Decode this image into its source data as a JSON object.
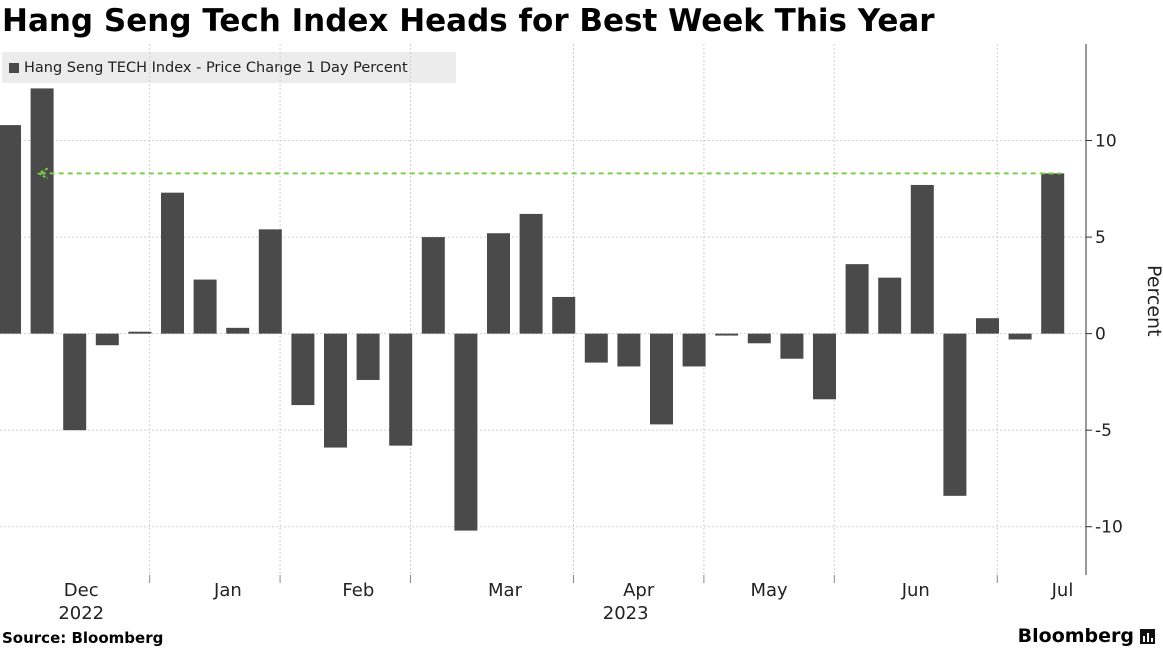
{
  "header": {
    "title": "Hang Seng Tech Index Heads for Best Week This Year"
  },
  "footer": {
    "source": "Source: Bloomberg",
    "brand": "Bloomberg",
    "brand_icon": "bar-chart-icon"
  },
  "colors": {
    "bars": "#4a4a4a",
    "highlight": "#7ad04a",
    "grid": "#d0d0d0",
    "legend_bg": "#ececec"
  },
  "chart_data": {
    "type": "bar",
    "legend": [
      "Hang Seng TECH Index - Price Change 1 Day Percent"
    ],
    "ylabel": "Percent",
    "ylim": [
      -12.5,
      15
    ],
    "yticks": [
      10,
      5,
      0,
      -5,
      -10
    ],
    "yaxis_position": "right",
    "grid": true,
    "legend_position": "top-left",
    "series": [
      {
        "name": "Hang Seng TECH Index - Price Change 1 Day Percent",
        "values": [
          10.8,
          12.7,
          -5.0,
          -0.6,
          0.1,
          7.3,
          2.8,
          0.3,
          5.4,
          -3.7,
          -5.9,
          -2.4,
          -5.8,
          5.0,
          -10.2,
          5.2,
          6.2,
          1.9,
          -1.5,
          -1.7,
          -4.7,
          -1.7,
          -0.1,
          -0.5,
          -1.3,
          -3.4,
          3.6,
          2.9,
          7.7,
          -8.4,
          0.8,
          -0.3,
          8.3
        ]
      }
    ],
    "x_month_labels": [
      {
        "label": "Dec",
        "sub": "2022",
        "at": 2.2
      },
      {
        "label": "Jan",
        "sub": "",
        "at": 6.7
      },
      {
        "label": "Feb",
        "sub": "",
        "at": 10.7
      },
      {
        "label": "Mar",
        "sub": "",
        "at": 15.2
      },
      {
        "label": "Apr",
        "sub": "2023",
        "at": 19.3
      },
      {
        "label": "May",
        "sub": "",
        "at": 23.3
      },
      {
        "label": "Jun",
        "sub": "",
        "at": 27.8
      },
      {
        "label": "Jul",
        "sub": "",
        "at": 32.3
      }
    ],
    "month_boundaries": [
      4.3,
      8.3,
      12.3,
      17.3,
      21.3,
      25.3,
      30.3
    ],
    "reference_line": {
      "value": 8.3,
      "style": "dashed",
      "arrow": "left"
    }
  }
}
